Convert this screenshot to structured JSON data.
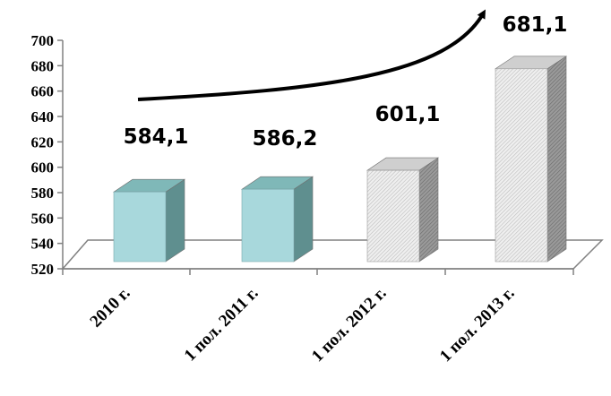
{
  "chart_data": {
    "type": "bar",
    "categories": [
      "2010 г.",
      "1 пол. 2011 г.",
      "1 пол. 2012 г.",
      "1 пол. 2013 г."
    ],
    "values": [
      584.1,
      586.2,
      601.1,
      681.1
    ],
    "data_labels": [
      "584,1",
      "586,2",
      "601,1",
      "681,1"
    ],
    "y_ticks": [
      "520",
      "540",
      "560",
      "580",
      "600",
      "620",
      "640",
      "660",
      "680",
      "700"
    ],
    "ylim": [
      520,
      700
    ],
    "bar_styles": [
      "solid",
      "solid",
      "hatched",
      "hatched"
    ],
    "three_d": true,
    "legend": "none",
    "trend_arrow": true,
    "colors": {
      "solid_front": "#a8d8dc",
      "solid_side": "#5f8f8f",
      "solid_top": "#7fb8b8",
      "hatched_front": "#e6e6e6",
      "hatched_side": "#8a8a8a",
      "hatched_top": "#cfcfcf",
      "floor": "#ffffff",
      "axis": "#808080"
    }
  }
}
